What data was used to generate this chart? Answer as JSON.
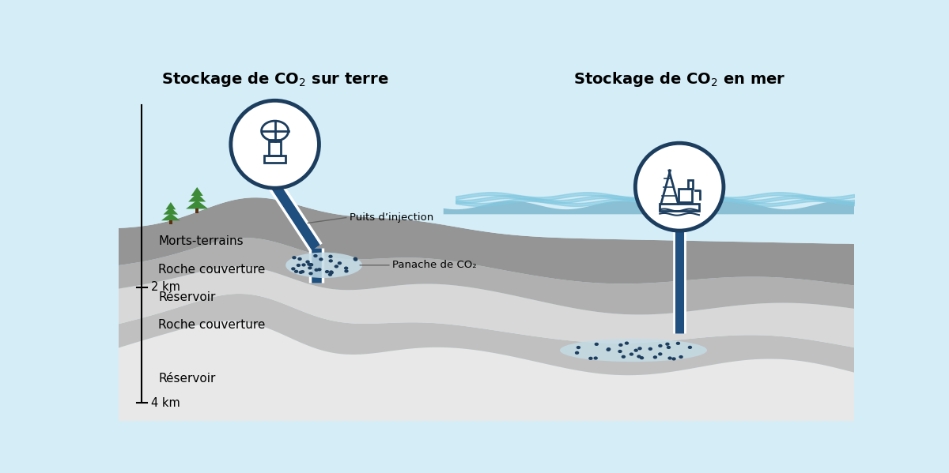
{
  "bg_sky": "#d4edf7",
  "sea_blue": "#5ab5d5",
  "sea_blue_dark": "#4aa0be",
  "dark_blue": "#1c3d5e",
  "medium_blue": "#1e4f7e",
  "gray_dark": "#999999",
  "gray_mid": "#aaaaaa",
  "gray_light": "#bbbbbb",
  "white_layer": "#e0e0e0",
  "white_layer2": "#ececec",
  "co2_plume": "#c5dde8",
  "co2_dot": "#1c3d5e",
  "green_tree": "#3d8b37",
  "title_land": "Stockage de CO$_2$ sur terre",
  "title_sea": "Stockage de CO$_2$ en mer",
  "label_morts": "Morts-terrains",
  "label_roche1": "Roche couverture",
  "label_res1": "Réservoir",
  "label_roche2": "Roche couverture",
  "label_res2": "Réservoir",
  "label_puits": "Puits d’injection",
  "label_panache": "Panache de CO₂",
  "label_2km": "2 km",
  "label_4km": "4 km"
}
